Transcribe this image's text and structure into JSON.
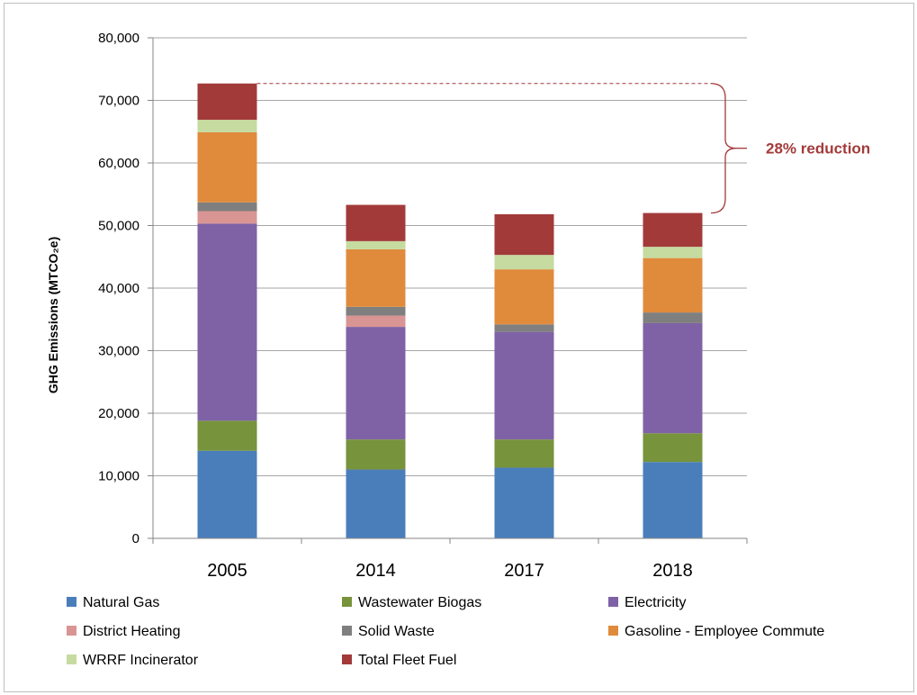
{
  "chart_data": {
    "type": "bar",
    "stacked": true,
    "categories": [
      "2005",
      "2014",
      "2017",
      "2018"
    ],
    "ylabel": "GHG Emissions (MTCO₂e)",
    "ylim": [
      0,
      80000
    ],
    "yticks": [
      0,
      10000,
      20000,
      30000,
      40000,
      50000,
      60000,
      70000,
      80000
    ],
    "ytick_labels": [
      "0",
      "10,000",
      "20,000",
      "30,000",
      "40,000",
      "50,000",
      "60,000",
      "70,000",
      "80,000"
    ],
    "grid": true,
    "legend_position": "bottom",
    "series": [
      {
        "name": "Natural Gas",
        "color": "#4a7ebb",
        "values": [
          14000,
          11000,
          11300,
          12200
        ]
      },
      {
        "name": "Wastewater Biogas",
        "color": "#77933c",
        "values": [
          4800,
          4800,
          4500,
          4600
        ]
      },
      {
        "name": "Electricity",
        "color": "#7f62a6",
        "values": [
          31500,
          18000,
          17200,
          17600
        ]
      },
      {
        "name": "District Heating",
        "color": "#d99594",
        "values": [
          2000,
          1800,
          0,
          0
        ]
      },
      {
        "name": "Solid Waste",
        "color": "#7f7f7f",
        "values": [
          1400,
          1400,
          1200,
          1700
        ]
      },
      {
        "name": "Gasoline - Employee Commute",
        "color": "#e08b3c",
        "values": [
          11200,
          9200,
          8800,
          8700
        ]
      },
      {
        "name": "WRRF Incinerator",
        "color": "#c5dba0",
        "values": [
          2000,
          1300,
          2300,
          1800
        ]
      },
      {
        "name": "Total Fleet Fuel",
        "color": "#a33a3a",
        "values": [
          5800,
          5800,
          6500,
          5400
        ]
      }
    ],
    "annotation": {
      "text": "28% reduction",
      "color": "#a33a3a",
      "from_value": 72700,
      "to_value": 52000
    }
  }
}
